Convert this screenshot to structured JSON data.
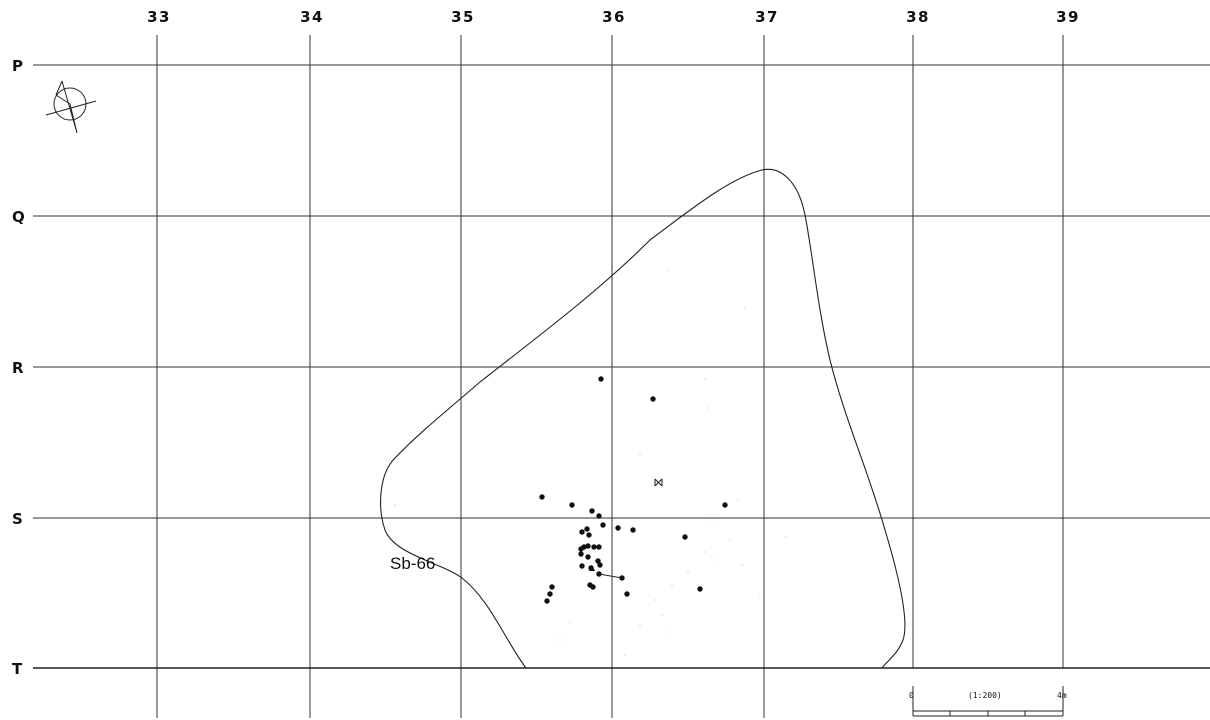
{
  "grid": {
    "columns": [
      "33",
      "34",
      "35",
      "36",
      "37",
      "38",
      "39"
    ],
    "rows": [
      "P",
      "Q",
      "R",
      "S",
      "T"
    ]
  },
  "feature": {
    "label": "Sb-66"
  },
  "scale_bar": {
    "start_label": "0",
    "ratio_label": "(1:200)",
    "end_label": "4m"
  },
  "north_arrow": {
    "icon": "north-arrow-icon"
  },
  "colors": {
    "lines": "#333333",
    "points": "#111111"
  }
}
